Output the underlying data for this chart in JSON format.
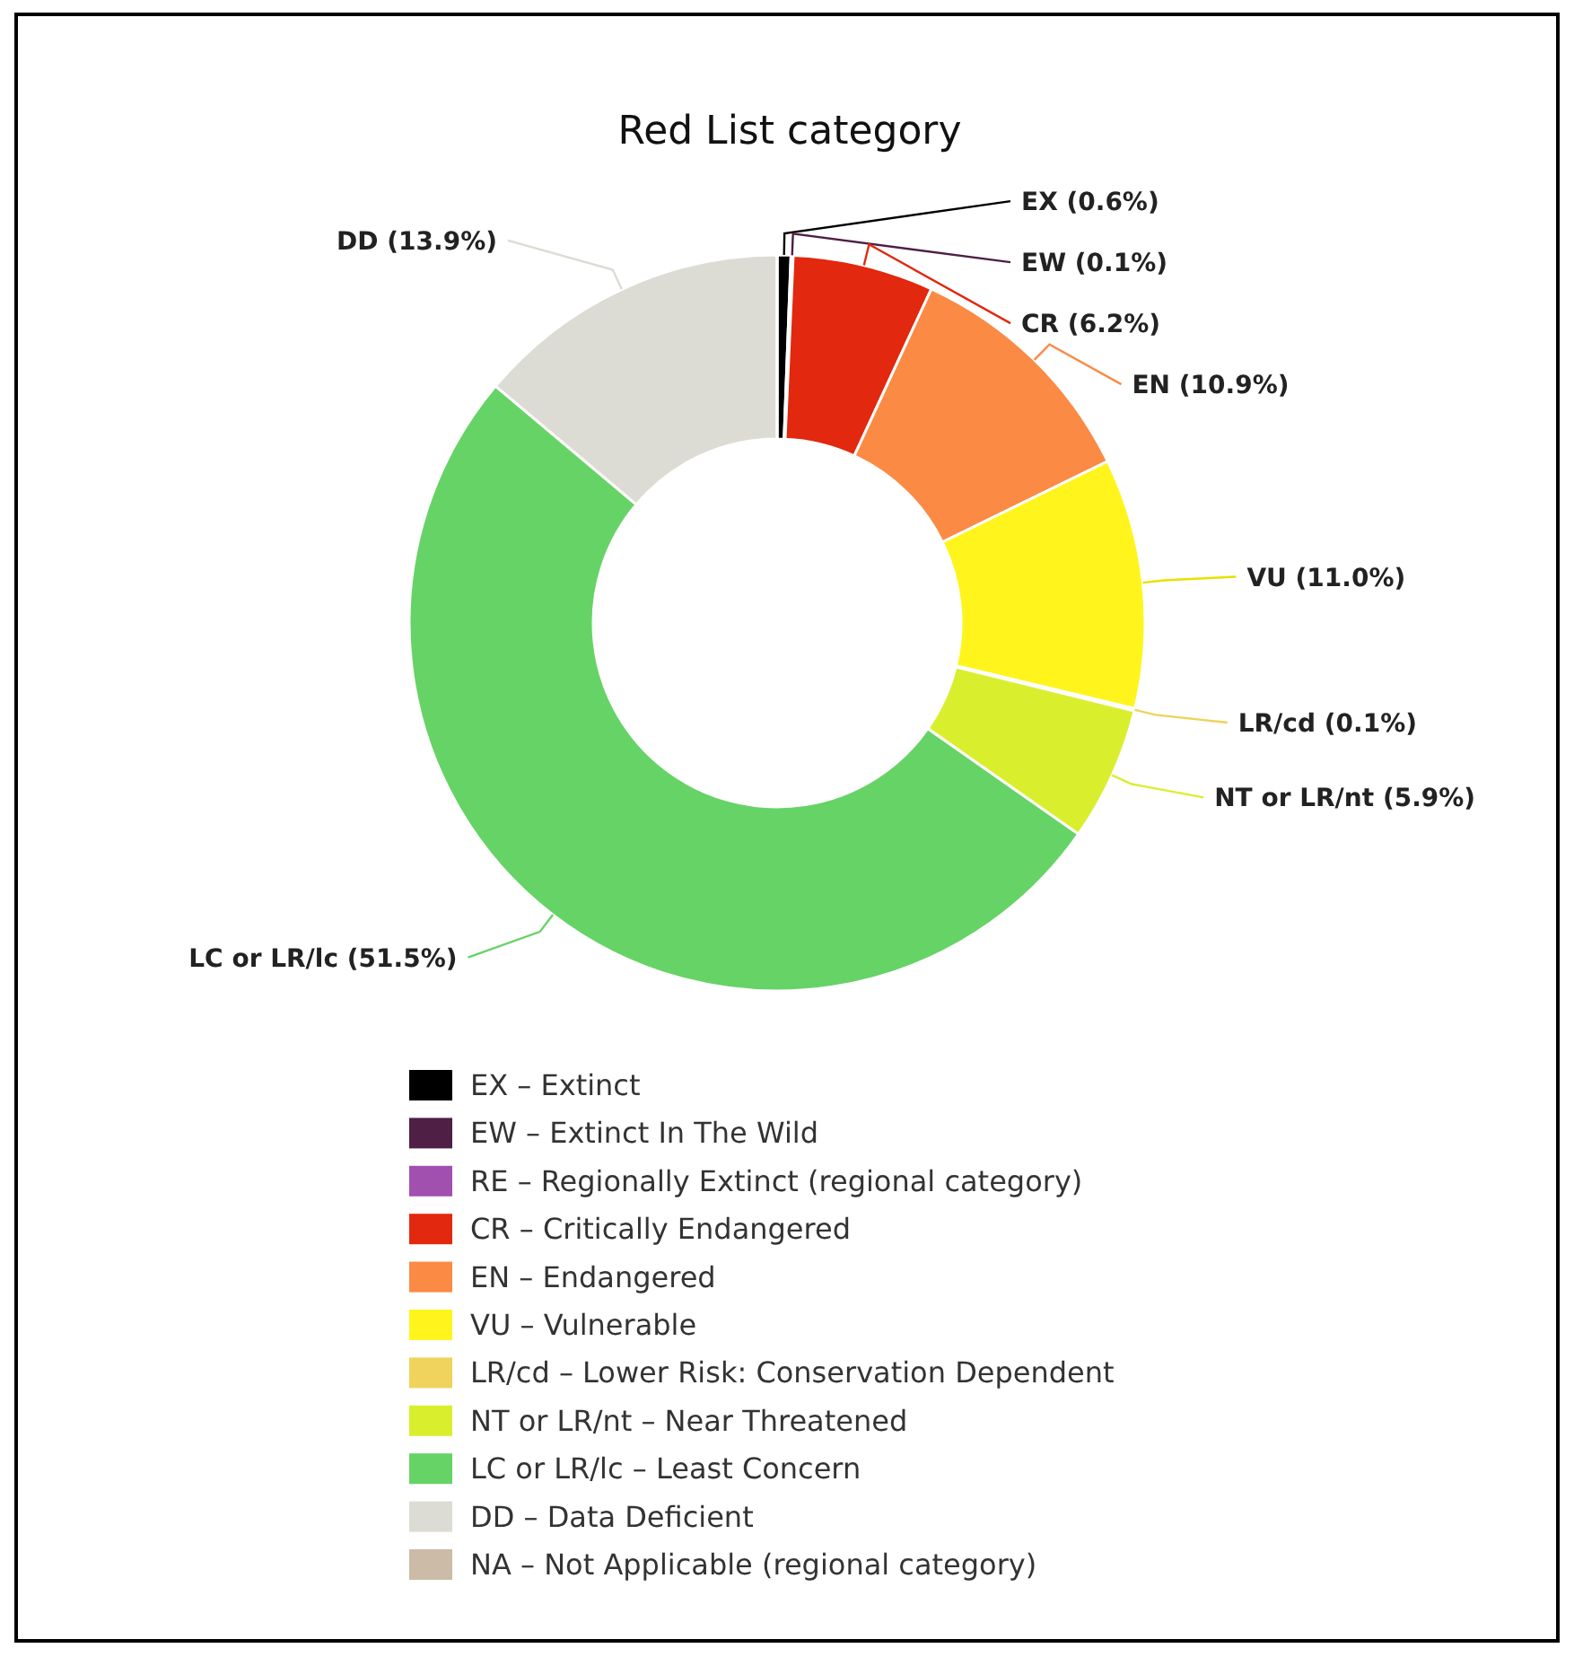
{
  "chart_data": {
    "type": "donut",
    "title": "Red List category",
    "categories": [
      "EX – Extinct",
      "EW – Extinct In The Wild",
      "RE – Regionally Extinct (regional category)",
      "CR – Critically Endangered",
      "EN – Endangered",
      "VU – Vulnerable",
      "LR/cd – Lower Risk: Conservation Dependent",
      "NT or LR/nt – Near Threatened",
      "LC or LR/lc – Least Concern",
      "DD – Data Deficient",
      "NA – Not Applicable (regional category)"
    ],
    "values": [
      0.6,
      0.1,
      0,
      6.2,
      10.9,
      11.0,
      0.1,
      5.9,
      51.5,
      13.9,
      0
    ],
    "value_labels": [
      "EX (0.6%)",
      "EW (0.1%)",
      null,
      "CR (6.2%)",
      "EN (10.9%)",
      "VU (11.0%)",
      "LR/cd (0.1%)",
      "NT or LR/nt (5.9%)",
      "LC or LR/lc (51.5%)",
      "DD (13.9%)",
      null
    ],
    "colors": [
      "#000000",
      "#4f1f45",
      "#a250b0",
      "#e2280e",
      "#fb8a45",
      "#fff51c",
      "#efd35c",
      "#d9ef2e",
      "#66d366",
      "#dcdcd4",
      "#cbbba7"
    ],
    "legend": "bottom"
  }
}
